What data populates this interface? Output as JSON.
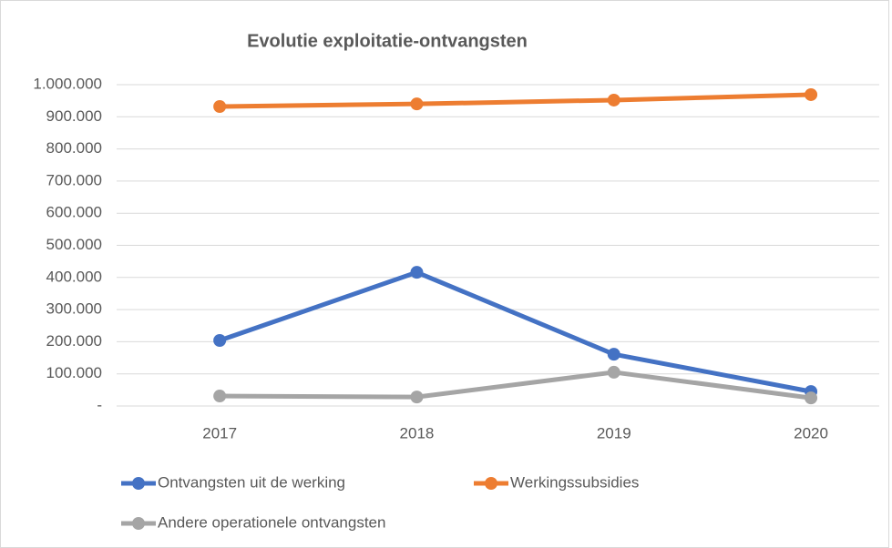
{
  "chart_data": {
    "type": "line",
    "title": "Evolutie exploitatie-ontvangsten",
    "categories": [
      "2017",
      "2018",
      "2019",
      "2020"
    ],
    "series": [
      {
        "name": "Ontvangsten uit de werking",
        "color": "#4472c4",
        "values": [
          204000,
          416000,
          161000,
          45000
        ]
      },
      {
        "name": "Werkingssubsidies",
        "color": "#ed7d31",
        "values": [
          932000,
          940000,
          952000,
          969000
        ]
      },
      {
        "name": "Andere operationele ontvangsten",
        "color": "#a5a5a5",
        "values": [
          31000,
          28000,
          105000,
          25000
        ]
      }
    ],
    "ylim": [
      0,
      1000000
    ],
    "yticks": [
      {
        "value": 0,
        "label": "-"
      },
      {
        "value": 100000,
        "label": "100.000"
      },
      {
        "value": 200000,
        "label": "200.000"
      },
      {
        "value": 300000,
        "label": "300.000"
      },
      {
        "value": 400000,
        "label": "400.000"
      },
      {
        "value": 500000,
        "label": "500.000"
      },
      {
        "value": 600000,
        "label": "600.000"
      },
      {
        "value": 700000,
        "label": "700.000"
      },
      {
        "value": 800000,
        "label": "800.000"
      },
      {
        "value": 900000,
        "label": "900.000"
      },
      {
        "value": 1000000,
        "label": "1.000.000"
      }
    ],
    "grid": true,
    "legend": "bottom"
  }
}
